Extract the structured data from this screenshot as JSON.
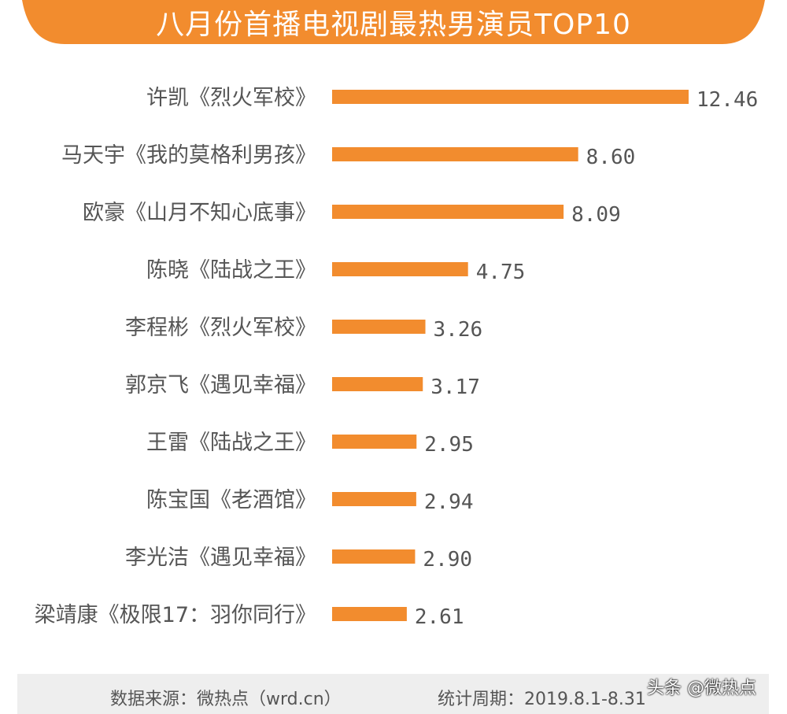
{
  "colors": {
    "accent": "#F28C2E",
    "text": "#555555",
    "footer_bg": "#EEEEEE"
  },
  "chart_data": {
    "type": "bar",
    "orientation": "horizontal",
    "title": "八月份首播电视剧最热男演员TOP10",
    "categories": [
      "许凯《烈火军校》",
      "马天宇《我的莫格利男孩》",
      "欧豪《山月不知心底事》",
      "陈晓《陆战之王》",
      "李程彬《烈火军校》",
      "郭京飞《遇见幸福》",
      "王雷《陆战之王》",
      "陈宝国《老酒馆》",
      "李光洁《遇见幸福》",
      "梁靖康《极限17：羽你同行》"
    ],
    "values": [
      12.46,
      8.6,
      8.09,
      4.75,
      3.26,
      3.17,
      2.95,
      2.94,
      2.9,
      2.61
    ],
    "value_labels": [
      "12.46",
      "8.60",
      "8.09",
      "4.75",
      "3.26",
      "3.17",
      "2.95",
      "2.94",
      "2.90",
      "2.61"
    ],
    "xlim": [
      0,
      12.46
    ],
    "grid": false,
    "legend": "none"
  },
  "footer": {
    "source": "数据来源：微热点（wrd.cn）",
    "period": "统计周期：2019.8.1-8.31"
  },
  "watermark": "头条 @微热点"
}
